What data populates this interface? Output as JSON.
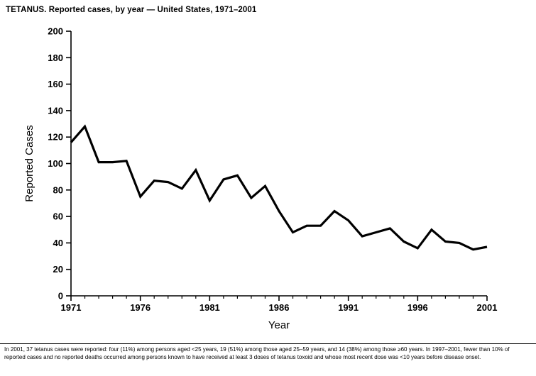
{
  "title": "TETANUS. Reported cases, by year — United States, 1971–2001",
  "footnote": "In 2001, 37 tetanus cases were reported: four (11%) among persons aged <25 years, 19 (51%) among those aged 25–59 years, and 14 (38%) among those ≥60 years. In 1997–2001, fewer than 10% of reported cases and no reported deaths occurred among persons known to have received at least 3 doses of tetanus toxoid and whose most recent dose was <10 years before disease onset.",
  "chart_data": {
    "type": "line",
    "title": "TETANUS. Reported cases, by year — United States, 1971–2001",
    "xlabel": "Year",
    "ylabel": "Reported Cases",
    "ylim": [
      0,
      200
    ],
    "ytick_interval": 20,
    "xticks": [
      1971,
      1976,
      1981,
      1986,
      1991,
      1996,
      2001
    ],
    "grid": false,
    "legend": "none",
    "line_color": "#000000",
    "line_width": 3.2,
    "x": [
      1971,
      1972,
      1973,
      1974,
      1975,
      1976,
      1977,
      1978,
      1979,
      1980,
      1981,
      1982,
      1983,
      1984,
      1985,
      1986,
      1987,
      1988,
      1989,
      1990,
      1991,
      1992,
      1993,
      1994,
      1995,
      1996,
      1997,
      1998,
      1999,
      2000,
      2001
    ],
    "series": [
      {
        "name": "Reported cases",
        "values": [
          116,
          128,
          101,
          101,
          102,
          75,
          87,
          86,
          81,
          95,
          72,
          88,
          91,
          74,
          83,
          64,
          48,
          53,
          53,
          64,
          57,
          45,
          48,
          51,
          41,
          36,
          50,
          41,
          40,
          35,
          37
        ]
      }
    ]
  }
}
